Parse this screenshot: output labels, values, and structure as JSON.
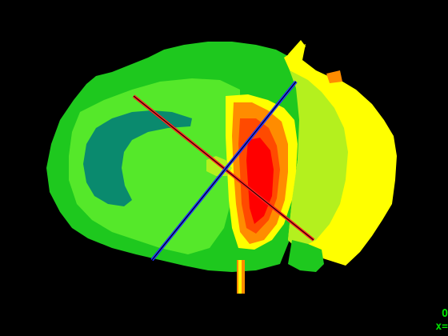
{
  "readout": {
    "line1": "O",
    "line2": "x="
  },
  "colors": {
    "background": "#000000",
    "dark_teal": "#0a8a6e",
    "green": "#1ec81e",
    "bright_green": "#55e82a",
    "yellow_green": "#b4f01e",
    "yellow": "#ffff00",
    "orange": "#ff8c00",
    "red_orange": "#ff4a00",
    "red": "#ff0000",
    "crosshair_red": "#ff2020",
    "crosshair_blue": "#1e2eff",
    "readout_text": "#00e000"
  }
}
